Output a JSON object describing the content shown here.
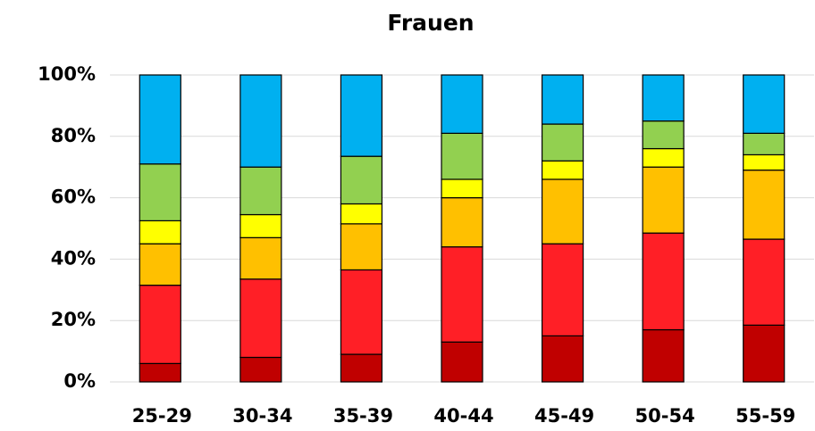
{
  "chart_data": {
    "type": "stacked_bar",
    "title": "Frauen",
    "categories": [
      "25-29",
      "30-34",
      "35-39",
      "40-44",
      "45-49",
      "50-54",
      "55-59"
    ],
    "series": [
      {
        "color": "#c00000",
        "values": [
          6,
          8,
          9,
          13,
          15,
          17,
          18.5
        ]
      },
      {
        "color": "#ff1f26",
        "values": [
          25.5,
          25.5,
          27.5,
          31,
          30,
          31.5,
          28
        ]
      },
      {
        "color": "#ffc000",
        "values": [
          13.5,
          13.5,
          15,
          16,
          21,
          21.5,
          22.5
        ]
      },
      {
        "color": "#ffff00",
        "values": [
          7.5,
          7.5,
          6.5,
          6,
          6,
          6,
          5
        ]
      },
      {
        "color": "#92d050",
        "values": [
          18.5,
          15.5,
          15.5,
          15,
          12,
          9,
          7
        ]
      },
      {
        "color": "#00b0f0",
        "values": [
          29,
          30,
          26.5,
          19,
          16,
          15,
          19
        ]
      }
    ],
    "ylim": [
      0,
      100
    ],
    "yticks": [
      {
        "value": 0,
        "label": "0%"
      },
      {
        "value": 20,
        "label": "20%"
      },
      {
        "value": 40,
        "label": "40%"
      },
      {
        "value": 60,
        "label": "60%"
      },
      {
        "value": 80,
        "label": "80%"
      },
      {
        "value": 100,
        "label": "100%"
      }
    ],
    "grid": true
  }
}
